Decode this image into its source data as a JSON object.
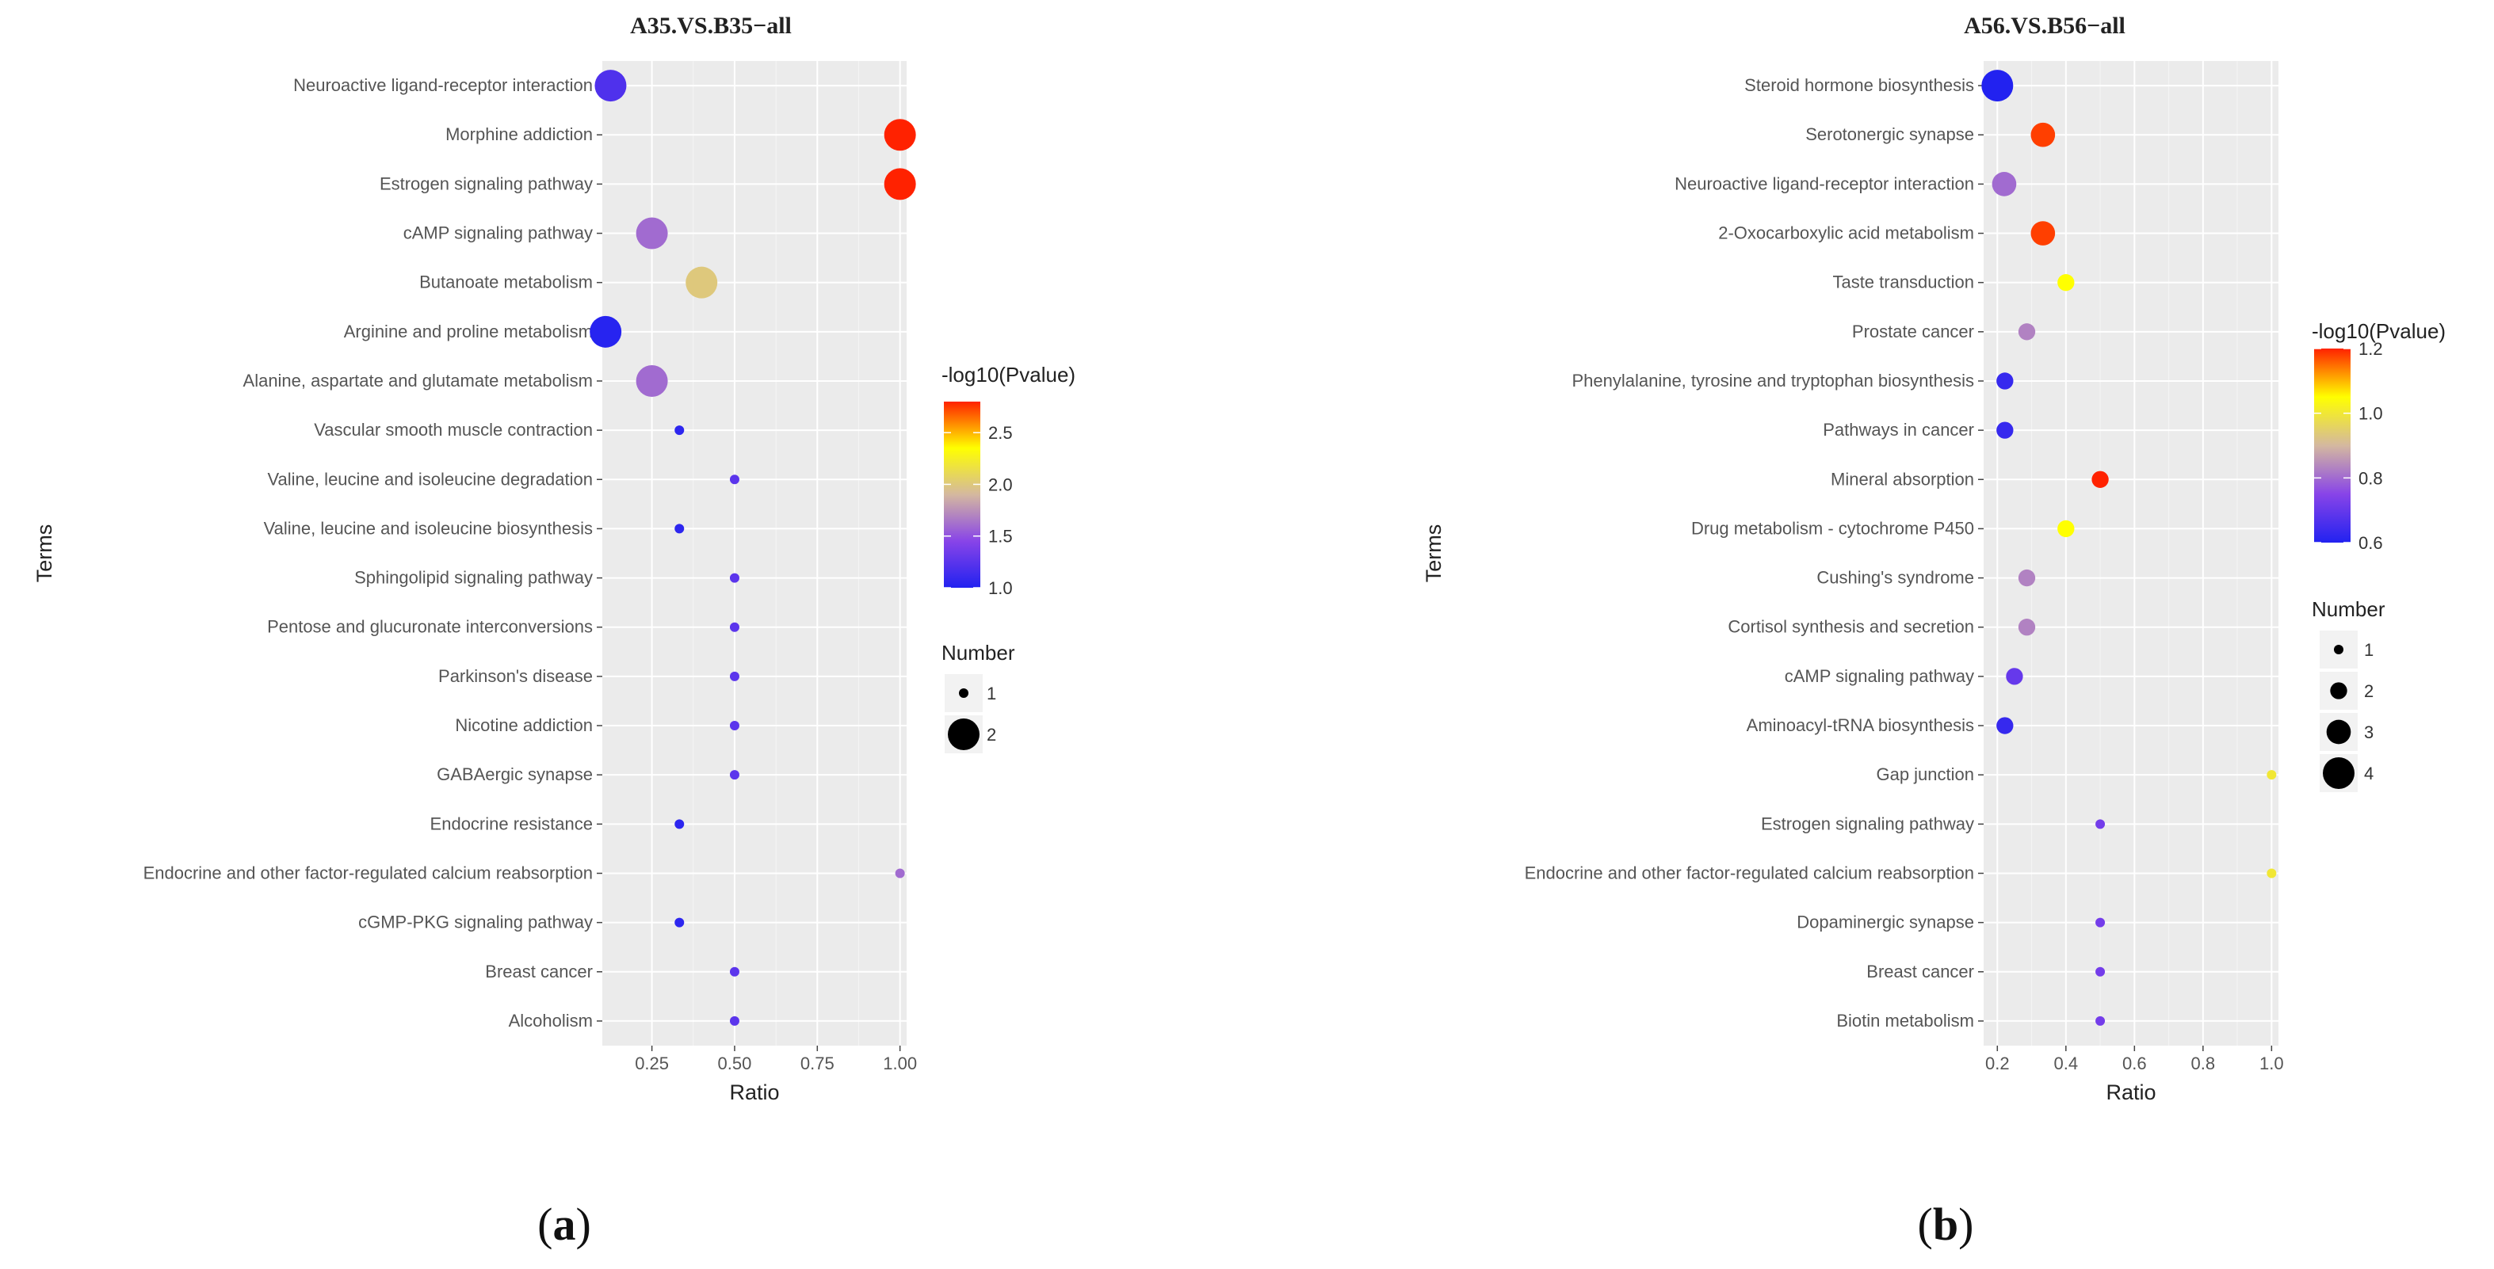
{
  "chart_data": [
    {
      "type": "scatter",
      "panel_label": "a",
      "title": "A35.VS.B35−all",
      "xlabel": "Ratio",
      "ylabel": "Terms",
      "xlim": [
        0.1,
        1.02
      ],
      "x_ticks": [
        0.25,
        0.5,
        0.75,
        1.0
      ],
      "x_tick_labels": [
        "0.25",
        "0.50",
        "0.75",
        "1.00"
      ],
      "color_legend": {
        "title": "-log10(Pvalue)",
        "range": [
          1.0,
          2.8
        ],
        "ticks": [
          1.0,
          1.5,
          2.0,
          2.5
        ],
        "tick_labels": [
          "1.0",
          "1.5",
          "2.0",
          "2.5"
        ],
        "colors": [
          "#2222f0",
          "#8844e8",
          "#d4b8a0",
          "#ffff00",
          "#ff2200"
        ]
      },
      "size_legend": {
        "title": "Number",
        "values": [
          1,
          2
        ],
        "labels": [
          "1",
          "2"
        ]
      },
      "points": [
        {
          "term": "Neuroactive ligand-receptor interaction",
          "ratio": 0.125,
          "neglog10p": 1.2,
          "number": 2
        },
        {
          "term": "Morphine addiction",
          "ratio": 1.0,
          "neglog10p": 2.8,
          "number": 2
        },
        {
          "term": "Estrogen signaling pathway",
          "ratio": 1.0,
          "neglog10p": 2.8,
          "number": 2
        },
        {
          "term": "cAMP signaling pathway",
          "ratio": 0.25,
          "neglog10p": 1.6,
          "number": 2
        },
        {
          "term": "Butanoate metabolism",
          "ratio": 0.4,
          "neglog10p": 2.0,
          "number": 2
        },
        {
          "term": "Arginine and proline metabolism",
          "ratio": 0.11,
          "neglog10p": 1.02,
          "number": 2
        },
        {
          "term": "Alanine, aspartate and glutamate metabolism",
          "ratio": 0.25,
          "neglog10p": 1.6,
          "number": 2
        },
        {
          "term": "Vascular smooth muscle contraction",
          "ratio": 0.333,
          "neglog10p": 1.05,
          "number": 1
        },
        {
          "term": "Valine, leucine and isoleucine degradation",
          "ratio": 0.5,
          "neglog10p": 1.25,
          "number": 1
        },
        {
          "term": "Valine, leucine and isoleucine biosynthesis",
          "ratio": 0.333,
          "neglog10p": 1.05,
          "number": 1
        },
        {
          "term": "Sphingolipid signaling pathway",
          "ratio": 0.5,
          "neglog10p": 1.25,
          "number": 1
        },
        {
          "term": "Pentose and glucuronate interconversions",
          "ratio": 0.5,
          "neglog10p": 1.25,
          "number": 1
        },
        {
          "term": "Parkinson's disease",
          "ratio": 0.5,
          "neglog10p": 1.25,
          "number": 1
        },
        {
          "term": "Nicotine addiction",
          "ratio": 0.5,
          "neglog10p": 1.25,
          "number": 1
        },
        {
          "term": "GABAergic synapse",
          "ratio": 0.5,
          "neglog10p": 1.25,
          "number": 1
        },
        {
          "term": "Endocrine resistance",
          "ratio": 0.333,
          "neglog10p": 1.05,
          "number": 1
        },
        {
          "term": "Endocrine and other factor-regulated calcium reabsorption",
          "ratio": 1.0,
          "neglog10p": 1.6,
          "number": 1
        },
        {
          "term": "cGMP-PKG signaling pathway",
          "ratio": 0.333,
          "neglog10p": 1.05,
          "number": 1
        },
        {
          "term": "Breast cancer",
          "ratio": 0.5,
          "neglog10p": 1.25,
          "number": 1
        },
        {
          "term": "Alcoholism",
          "ratio": 0.5,
          "neglog10p": 1.25,
          "number": 1
        }
      ]
    },
    {
      "type": "scatter",
      "panel_label": "b",
      "title": "A56.VS.B56−all",
      "xlabel": "Ratio",
      "ylabel": "Terms",
      "xlim": [
        0.16,
        1.02
      ],
      "x_ticks": [
        0.2,
        0.4,
        0.6,
        0.8,
        1.0
      ],
      "x_tick_labels": [
        "0.2",
        "0.4",
        "0.6",
        "0.8",
        "1.0"
      ],
      "color_legend": {
        "title": "-log10(Pvalue)",
        "range": [
          0.6,
          1.2
        ],
        "ticks": [
          0.6,
          0.8,
          1.0,
          1.2
        ],
        "tick_labels": [
          "0.6",
          "0.8",
          "1.0",
          "1.2"
        ],
        "colors": [
          "#2222f0",
          "#8844e8",
          "#d4b8a0",
          "#ffff00",
          "#ff2200"
        ]
      },
      "size_legend": {
        "title": "Number",
        "values": [
          1,
          2,
          3,
          4
        ],
        "labels": [
          "1",
          "2",
          "3",
          "4"
        ]
      },
      "points": [
        {
          "term": "Steroid hormone biosynthesis",
          "ratio": 0.2,
          "neglog10p": 0.6,
          "number": 4
        },
        {
          "term": "Serotonergic synapse",
          "ratio": 0.333,
          "neglog10p": 1.18,
          "number": 3
        },
        {
          "term": "Neuroactive ligand-receptor interaction",
          "ratio": 0.22,
          "neglog10p": 0.8,
          "number": 3
        },
        {
          "term": "2-Oxocarboxylic acid metabolism",
          "ratio": 0.333,
          "neglog10p": 1.18,
          "number": 3
        },
        {
          "term": "Taste transduction",
          "ratio": 0.4,
          "neglog10p": 1.05,
          "number": 2
        },
        {
          "term": "Prostate cancer",
          "ratio": 0.286,
          "neglog10p": 0.83,
          "number": 2
        },
        {
          "term": "Phenylalanine, tyrosine and tryptophan biosynthesis",
          "ratio": 0.222,
          "neglog10p": 0.63,
          "number": 2
        },
        {
          "term": "Pathways in cancer",
          "ratio": 0.222,
          "neglog10p": 0.63,
          "number": 2
        },
        {
          "term": "Mineral absorption",
          "ratio": 0.5,
          "neglog10p": 1.2,
          "number": 2
        },
        {
          "term": "Drug metabolism - cytochrome P450",
          "ratio": 0.4,
          "neglog10p": 1.05,
          "number": 2
        },
        {
          "term": "Cushing's syndrome",
          "ratio": 0.286,
          "neglog10p": 0.83,
          "number": 2
        },
        {
          "term": "Cortisol synthesis and secretion",
          "ratio": 0.286,
          "neglog10p": 0.83,
          "number": 2
        },
        {
          "term": "cAMP signaling pathway",
          "ratio": 0.25,
          "neglog10p": 0.7,
          "number": 2
        },
        {
          "term": "Aminoacyl-tRNA biosynthesis",
          "ratio": 0.222,
          "neglog10p": 0.63,
          "number": 2
        },
        {
          "term": "Gap junction",
          "ratio": 1.0,
          "neglog10p": 1.0,
          "number": 1
        },
        {
          "term": "Estrogen signaling pathway",
          "ratio": 0.5,
          "neglog10p": 0.72,
          "number": 1
        },
        {
          "term": "Endocrine and other factor-regulated calcium reabsorption",
          "ratio": 1.0,
          "neglog10p": 1.0,
          "number": 1
        },
        {
          "term": "Dopaminergic synapse",
          "ratio": 0.5,
          "neglog10p": 0.72,
          "number": 1
        },
        {
          "term": "Breast cancer",
          "ratio": 0.5,
          "neglog10p": 0.72,
          "number": 1
        },
        {
          "term": "Biotin metabolism",
          "ratio": 0.5,
          "neglog10p": 0.72,
          "number": 1
        }
      ]
    }
  ]
}
